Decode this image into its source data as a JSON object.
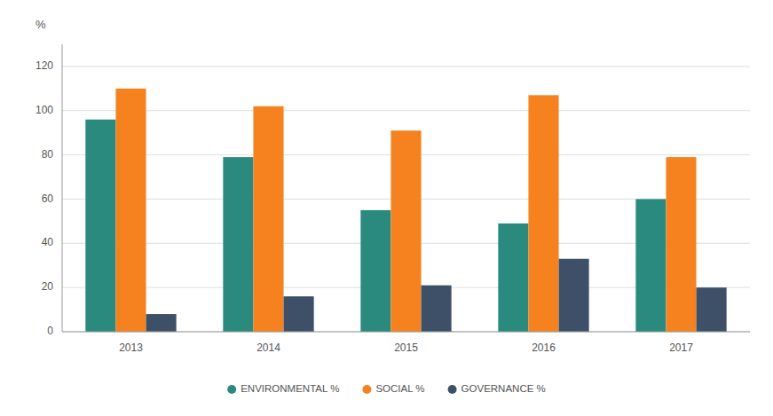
{
  "chart_data": {
    "type": "bar",
    "categories": [
      "2013",
      "2014",
      "2015",
      "2016",
      "2017"
    ],
    "series": [
      {
        "name": "ENVIRONMENTAL %",
        "color": "#2a8a7e",
        "values": [
          96,
          79,
          55,
          49,
          60
        ]
      },
      {
        "name": "SOCIAL %",
        "color": "#f5821f",
        "values": [
          110,
          102,
          91,
          107,
          79
        ]
      },
      {
        "name": "GOVERNANCE %",
        "color": "#3d5068",
        "values": [
          8,
          16,
          21,
          33,
          20
        ]
      }
    ],
    "ylabel": "%",
    "ylim": [
      0,
      130
    ],
    "yticks": [
      0,
      20,
      40,
      60,
      80,
      100,
      120
    ],
    "grid": true,
    "legend": "bottom"
  }
}
